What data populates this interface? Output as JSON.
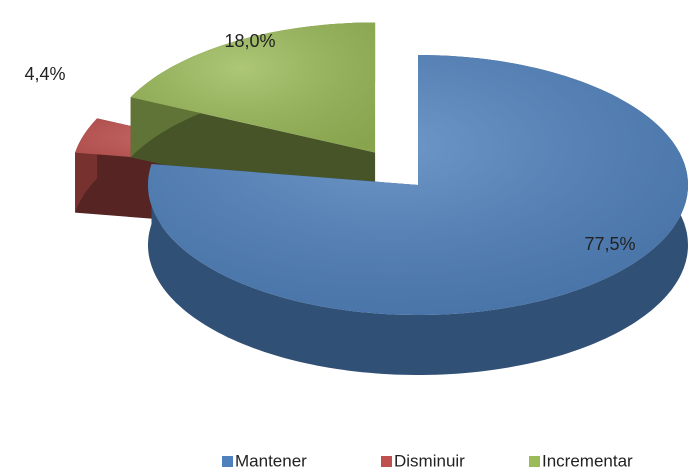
{
  "chart_data": {
    "type": "pie3d",
    "categories": [
      "Mantener",
      "Disminuir",
      "Incrementar"
    ],
    "values": [
      77.5,
      4.4,
      18.0
    ],
    "value_labels": [
      "77,5%",
      "4,4%",
      "18,0%"
    ],
    "colors": [
      "#4f81bd",
      "#c0504d",
      "#9bbb59"
    ],
    "legend": "bottom"
  }
}
